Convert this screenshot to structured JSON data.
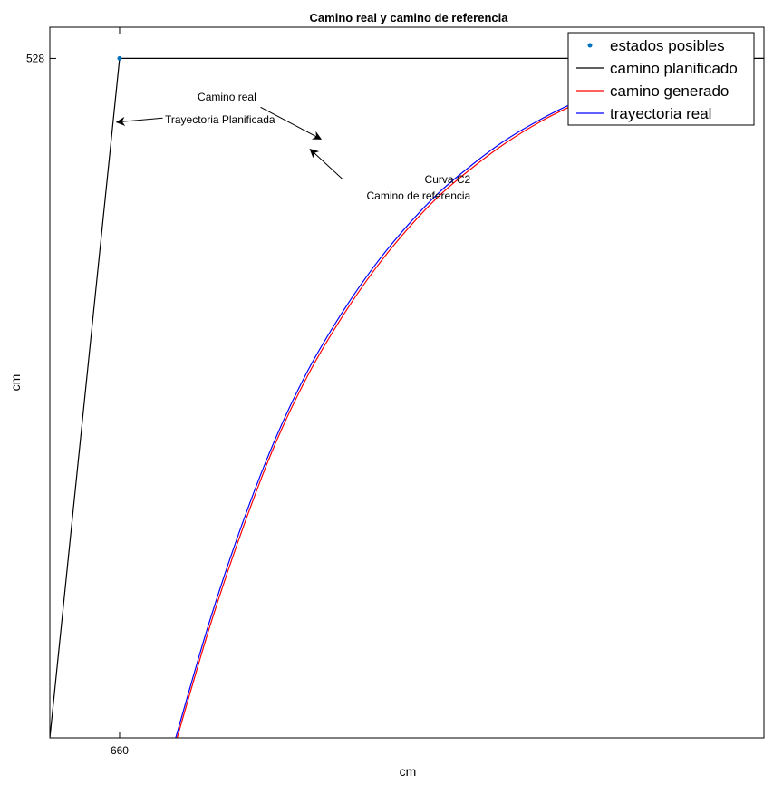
{
  "chart_data": {
    "type": "line",
    "title": "Camino real y camino de referencia",
    "xlabel": "cm",
    "ylabel": "cm",
    "x_ticks": [
      "660"
    ],
    "y_ticks": [
      "528"
    ],
    "xlim": [
      650.3,
      749.6
    ],
    "ylim": [
      427.8,
      532.6
    ],
    "grid": false,
    "legend_placement": "top-right",
    "legend": [
      "estados posibles",
      "camino planificado",
      "camino generado",
      "trayectoria real"
    ],
    "series": [
      {
        "name": "estados posibles",
        "style": "points",
        "color": "#0072BD",
        "points": [
          [
            660,
            528
          ]
        ]
      },
      {
        "name": "camino planificado",
        "style": "line",
        "color": "#000000",
        "points": [
          [
            650.3,
            427.8
          ],
          [
            660,
            528
          ],
          [
            749.6,
            528
          ]
        ]
      },
      {
        "name": "camino generado",
        "style": "line",
        "color": "#FF0000",
        "points": [
          [
            668.0,
            427.8
          ],
          [
            672.6,
            444.4
          ],
          [
            677.2,
            458.9
          ],
          [
            681.7,
            471.3
          ],
          [
            686.3,
            481.5
          ],
          [
            690.9,
            489.8
          ],
          [
            695.5,
            496.9
          ],
          [
            700.1,
            502.9
          ],
          [
            704.6,
            507.9
          ],
          [
            709.2,
            512.0
          ],
          [
            713.8,
            515.6
          ],
          [
            718.4,
            518.6
          ],
          [
            722.9,
            521.0
          ],
          [
            727.5,
            522.9
          ],
          [
            731.2,
            524.4
          ]
        ]
      },
      {
        "name": "trayectoria real",
        "style": "line",
        "color": "#0000FF",
        "points": [
          [
            667.8,
            427.8
          ],
          [
            672.4,
            444.6
          ],
          [
            677.0,
            459.2
          ],
          [
            681.5,
            471.5
          ],
          [
            686.1,
            481.8
          ],
          [
            690.7,
            490.1
          ],
          [
            695.3,
            497.2
          ],
          [
            699.9,
            503.2
          ],
          [
            704.4,
            508.2
          ],
          [
            709.0,
            512.3
          ],
          [
            713.6,
            515.9
          ],
          [
            718.2,
            518.8
          ],
          [
            722.7,
            521.2
          ],
          [
            727.3,
            523.0
          ],
          [
            731.0,
            524.5
          ]
        ]
      }
    ],
    "annotations": [
      {
        "lines": [
          "Trayectoria Planificada"
        ],
        "text_at": [
          666.3,
          518.4
        ],
        "anchor": "start",
        "arrow_from": [
          666.0,
          519.2
        ],
        "arrow_to": [
          659.6,
          518.6
        ]
      },
      {
        "lines": [
          "Camino real"
        ],
        "text_at": [
          679.0,
          521.8
        ],
        "anchor": "end",
        "arrow_from": [
          679.6,
          520.8
        ],
        "arrow_to": [
          688.0,
          516.1
        ]
      },
      {
        "lines": [
          "Curva C2",
          "Camino de referencia"
        ],
        "text_at": [
          708.8,
          509.6
        ],
        "anchor": "end",
        "arrow_from": [
          691.0,
          510.2
        ],
        "arrow_to": [
          686.5,
          514.6
        ]
      }
    ]
  }
}
